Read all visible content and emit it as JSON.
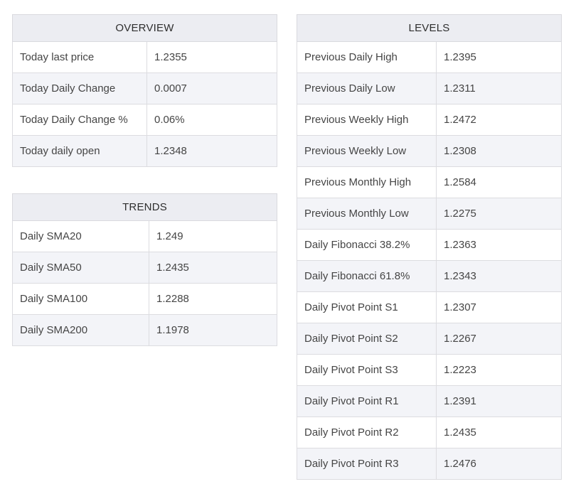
{
  "overview": {
    "title": "OVERVIEW",
    "rows": [
      {
        "label": "Today last price",
        "value": "1.2355"
      },
      {
        "label": "Today Daily Change",
        "value": "0.0007"
      },
      {
        "label": "Today Daily Change %",
        "value": "0.06%"
      },
      {
        "label": "Today daily open",
        "value": "1.2348"
      }
    ]
  },
  "trends": {
    "title": "TRENDS",
    "rows": [
      {
        "label": "Daily SMA20",
        "value": "1.249"
      },
      {
        "label": "Daily SMA50",
        "value": "1.2435"
      },
      {
        "label": "Daily SMA100",
        "value": "1.2288"
      },
      {
        "label": "Daily SMA200",
        "value": "1.1978"
      }
    ]
  },
  "levels": {
    "title": "LEVELS",
    "rows": [
      {
        "label": "Previous Daily High",
        "value": "1.2395"
      },
      {
        "label": "Previous Daily Low",
        "value": "1.2311"
      },
      {
        "label": "Previous Weekly High",
        "value": "1.2472"
      },
      {
        "label": "Previous Weekly Low",
        "value": "1.2308"
      },
      {
        "label": "Previous Monthly High",
        "value": "1.2584"
      },
      {
        "label": "Previous Monthly Low",
        "value": "1.2275"
      },
      {
        "label": "Daily Fibonacci 38.2%",
        "value": "1.2363"
      },
      {
        "label": "Daily Fibonacci 61.8%",
        "value": "1.2343"
      },
      {
        "label": "Daily Pivot Point S1",
        "value": "1.2307"
      },
      {
        "label": "Daily Pivot Point S2",
        "value": "1.2267"
      },
      {
        "label": "Daily Pivot Point S3",
        "value": "1.2223"
      },
      {
        "label": "Daily Pivot Point R1",
        "value": "1.2391"
      },
      {
        "label": "Daily Pivot Point R2",
        "value": "1.2435"
      },
      {
        "label": "Daily Pivot Point R3",
        "value": "1.2476"
      }
    ]
  }
}
